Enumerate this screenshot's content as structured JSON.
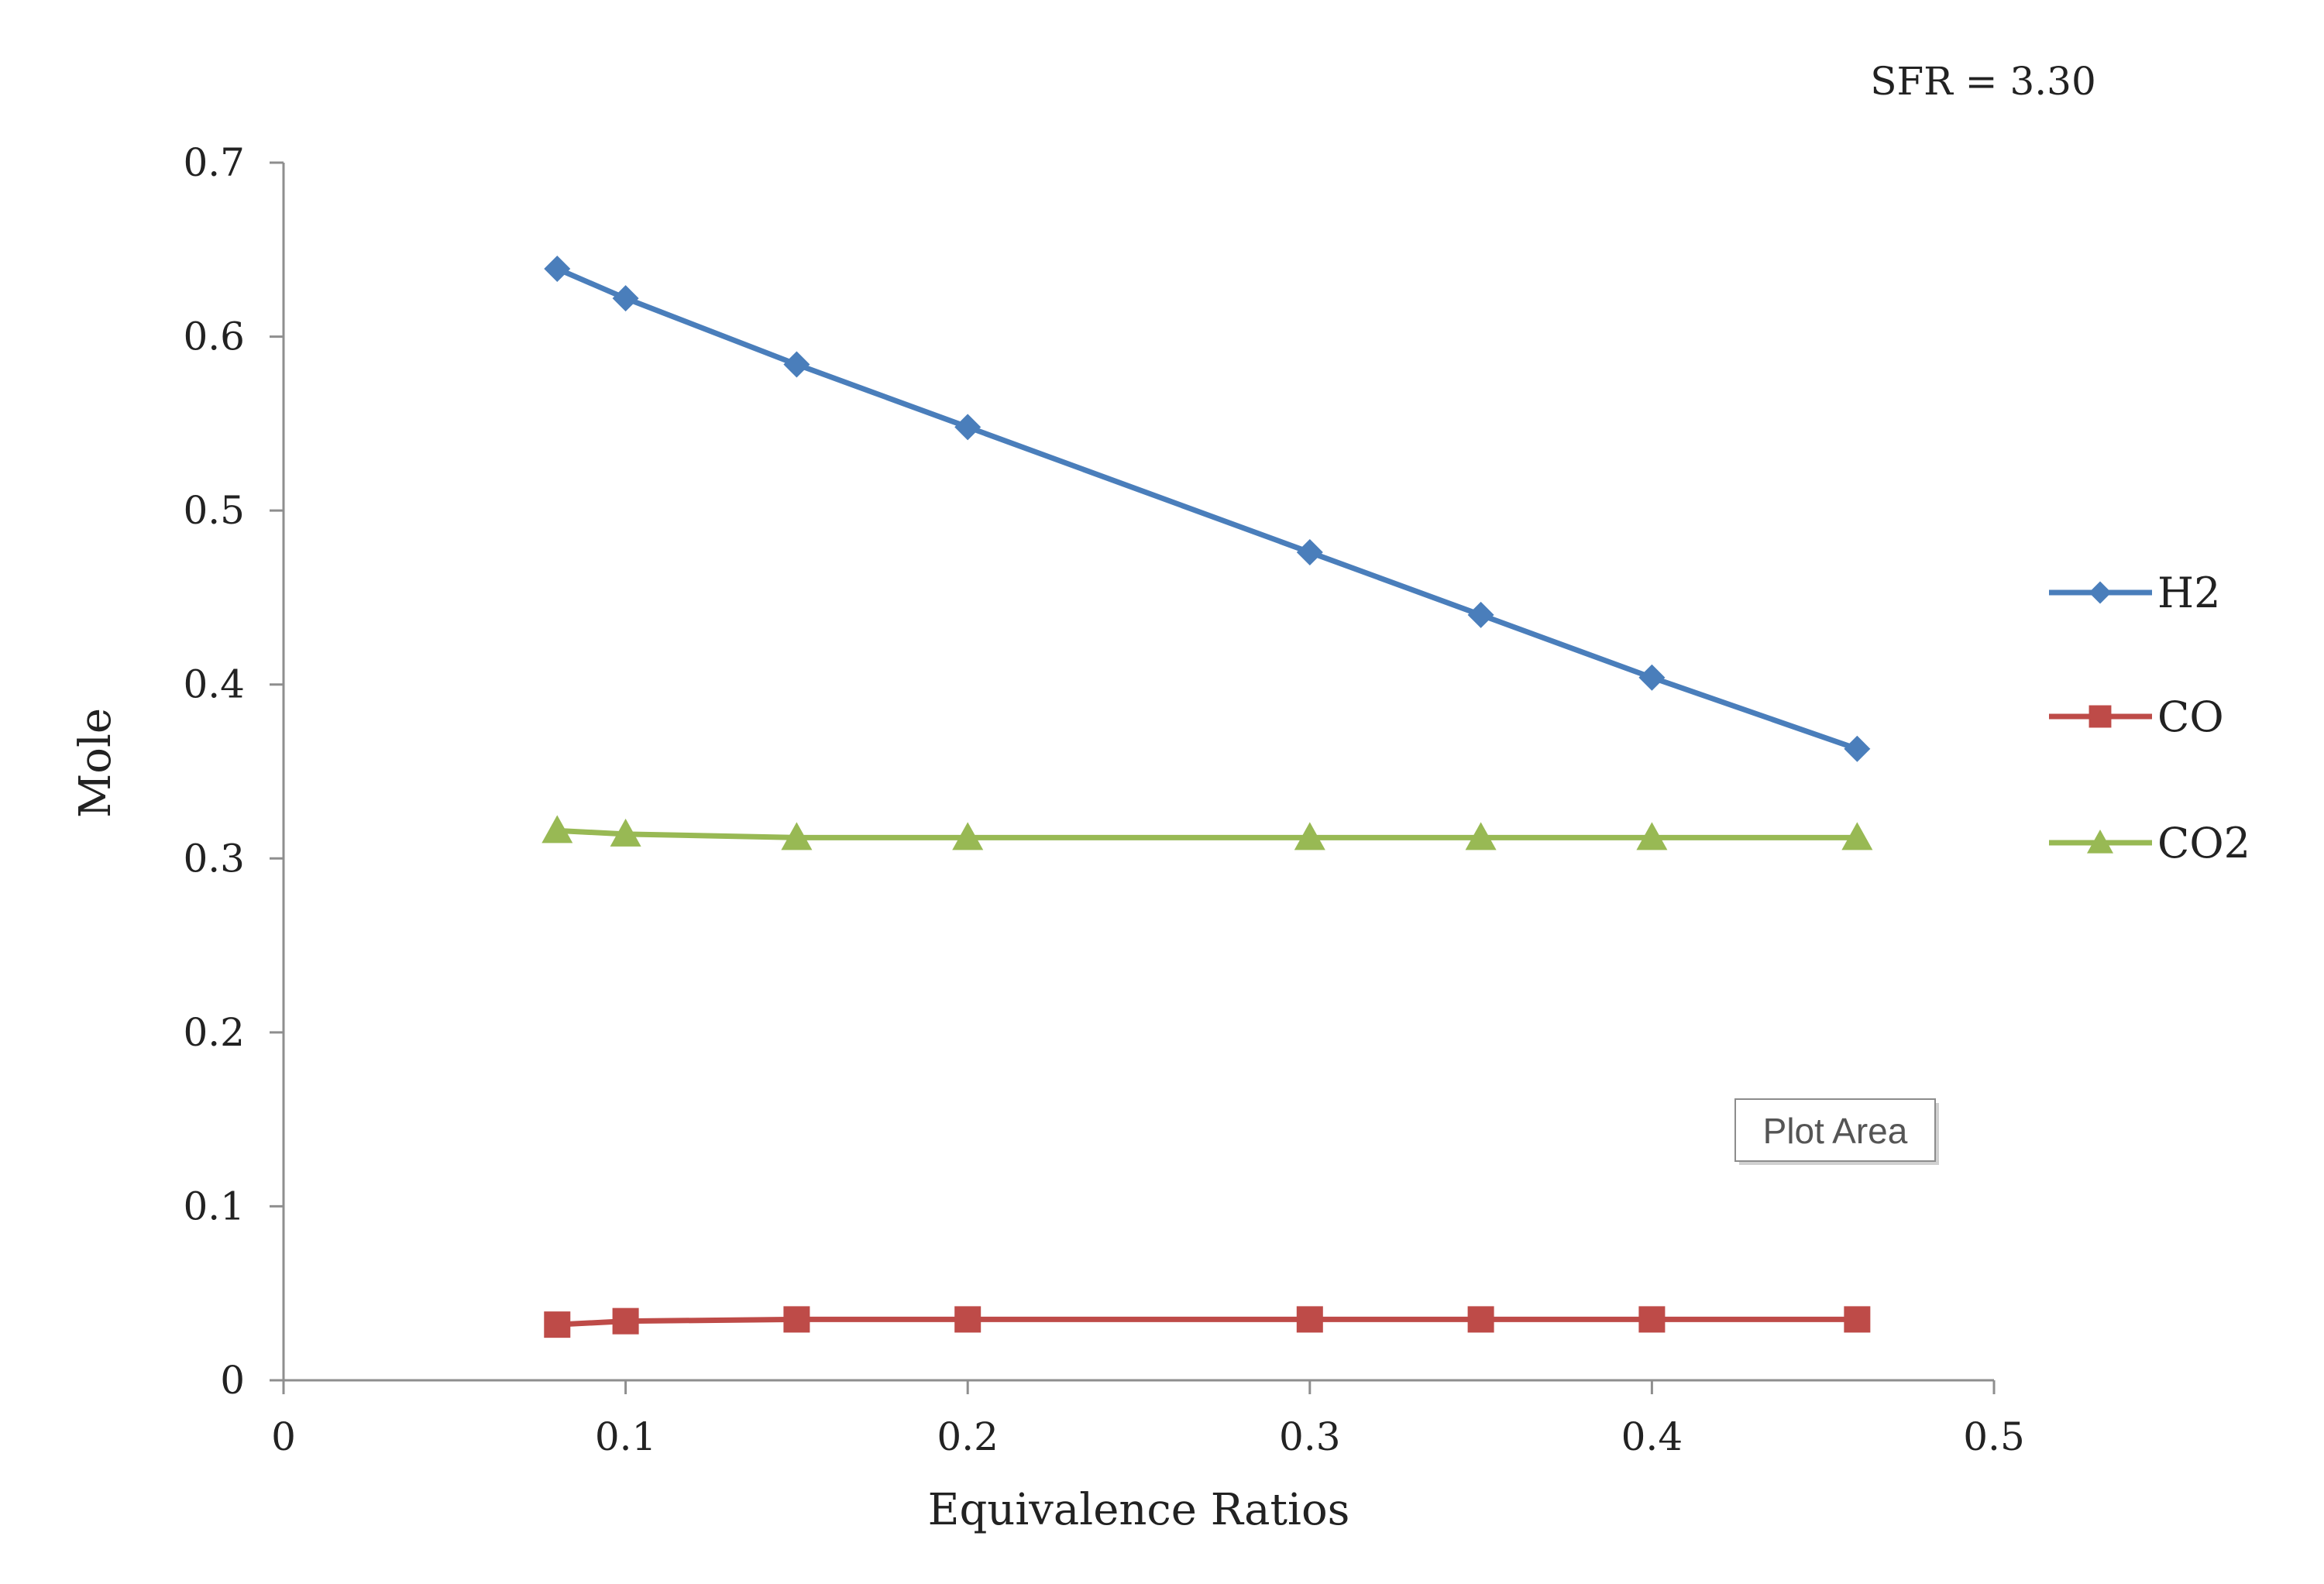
{
  "chart_data": {
    "type": "line",
    "title": "",
    "annotation": "SFR = 3.30",
    "xlabel": "Equivalence Ratios",
    "ylabel": "Mole",
    "xlim": [
      0,
      0.5
    ],
    "ylim": [
      0,
      0.7
    ],
    "xticks": [
      0,
      0.1,
      0.2,
      0.3,
      0.4,
      0.5
    ],
    "xtick_labels": [
      "0",
      "0.1",
      "0.2",
      "0.3",
      "0.4",
      "0.5"
    ],
    "yticks": [
      0,
      0.1,
      0.2,
      0.3,
      0.4,
      0.5,
      0.6,
      0.7
    ],
    "ytick_labels": [
      "0",
      "0.1",
      "0.2",
      "0.3",
      "0.4",
      "0.5",
      "0.6",
      "0.7"
    ],
    "grid": false,
    "legend_position": "right",
    "x": [
      0.08,
      0.1,
      0.15,
      0.2,
      0.3,
      0.35,
      0.4,
      0.46
    ],
    "series": [
      {
        "name": "H2",
        "marker": "diamond",
        "color": "#4a7ebb",
        "values": [
          0.639,
          0.622,
          0.584,
          0.548,
          0.476,
          0.44,
          0.404,
          0.363
        ]
      },
      {
        "name": "CO",
        "marker": "square",
        "color": "#be4b48",
        "values": [
          0.032,
          0.034,
          0.035,
          0.035,
          0.035,
          0.035,
          0.035,
          0.035
        ]
      },
      {
        "name": "CO2",
        "marker": "triangle",
        "color": "#98b954",
        "values": [
          0.316,
          0.314,
          0.312,
          0.312,
          0.312,
          0.312,
          0.312,
          0.312
        ]
      }
    ]
  },
  "tooltip": {
    "label": "Plot Area"
  }
}
